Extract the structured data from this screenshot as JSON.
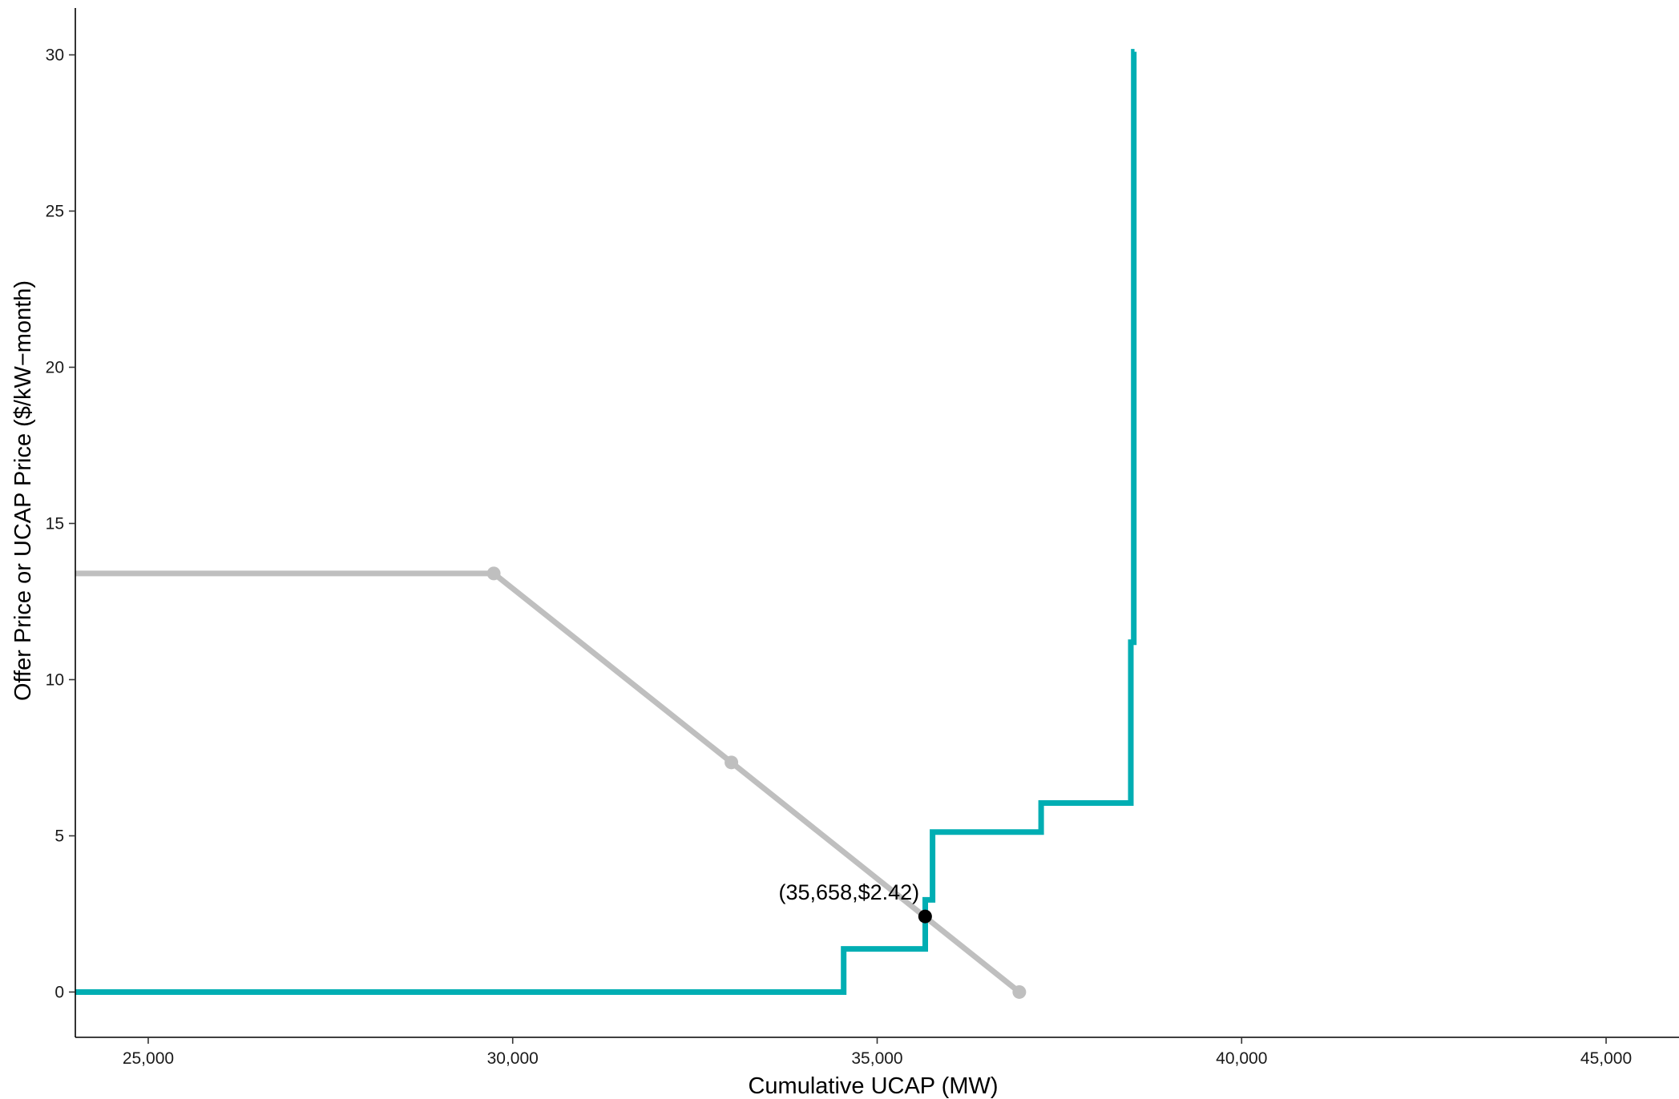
{
  "chart_data": {
    "type": "line",
    "xlabel": "Cumulative UCAP (MW)",
    "ylabel": "Offer Price or UCAP Price ($/kW−month)",
    "xlim": [
      24000,
      46000
    ],
    "ylim": [
      -1.45,
      31.5
    ],
    "x_ticks": [
      25000,
      30000,
      35000,
      40000,
      45000
    ],
    "x_tick_labels": [
      "25,000",
      "30,000",
      "35,000",
      "40,000",
      "45,000"
    ],
    "y_ticks": [
      0,
      5,
      10,
      15,
      20,
      25,
      30
    ],
    "y_tick_labels": [
      "0",
      "5",
      "10",
      "15",
      "20",
      "25",
      "30"
    ],
    "grid": false,
    "legend": "none",
    "series": [
      {
        "color": "#BFBFBF",
        "kind": "demand-curve",
        "x": [
          24000,
          29740,
          33000,
          36950
        ],
        "y": [
          13.4,
          13.4,
          7.35,
          0.0
        ],
        "marker_indices": [
          1,
          2,
          3
        ]
      },
      {
        "color": "#00AEB3",
        "kind": "supply-step",
        "x": [
          24000,
          34540,
          34540,
          35660,
          35660,
          35760,
          35760,
          37250,
          37250,
          38480,
          38480,
          38520,
          38520,
          38530
        ],
        "y": [
          0,
          0,
          1.38,
          1.38,
          2.95,
          2.95,
          5.12,
          5.12,
          6.05,
          6.05,
          11.2,
          11.2,
          30.1,
          30.1
        ]
      }
    ],
    "clearing_point": {
      "x": 35658,
      "y": 2.42,
      "label": "(35,658,$2.42)",
      "color": "#000000"
    }
  }
}
